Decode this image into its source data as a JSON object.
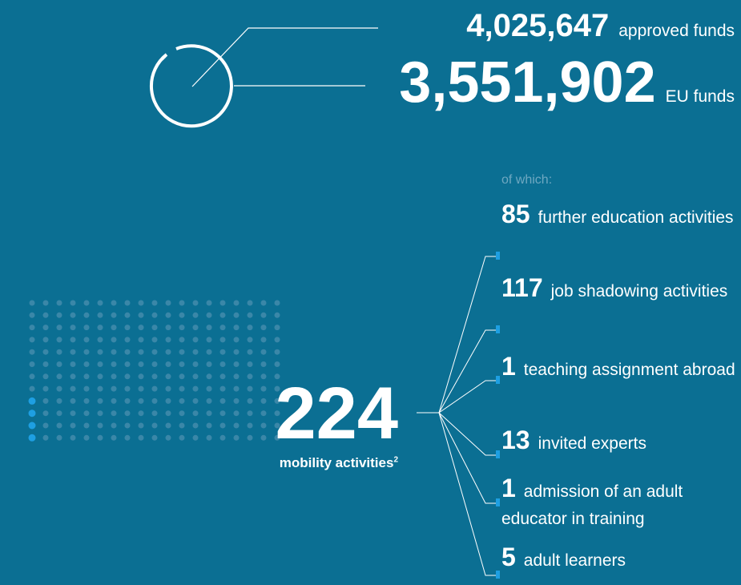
{
  "funds": {
    "approved": {
      "value": "4,025,647",
      "label": "approved funds"
    },
    "eu": {
      "value": "3,551,902",
      "label": "EU funds"
    }
  },
  "mobility": {
    "total": "224",
    "label": "mobility activities",
    "footnote": "2"
  },
  "breakdown": {
    "intro": "of which:",
    "items": [
      {
        "value": "85",
        "label": "further education activities"
      },
      {
        "value": "117",
        "label": "job shadowing activities"
      },
      {
        "value": "1",
        "label": "teaching assignment abroad"
      },
      {
        "value": "13",
        "label": "invited experts"
      },
      {
        "value": "1",
        "label": "admission of an adult educator in training"
      },
      {
        "value": "5",
        "label": "adult learners"
      }
    ]
  }
}
